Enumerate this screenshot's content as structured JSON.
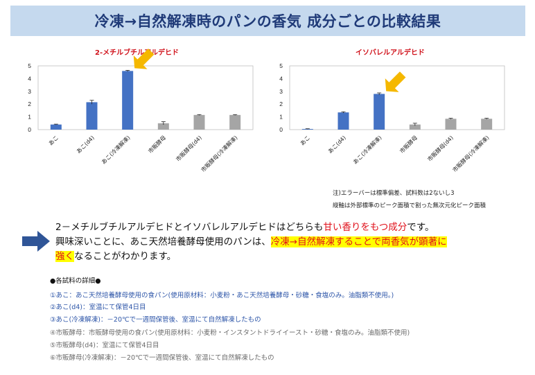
{
  "title": "冷凍→自然解凍時のパンの香気 成分ごとの比較結果",
  "chart_data": [
    {
      "type": "bar",
      "title": "2-メチルブチルアルデヒド",
      "categories": [
        "あこ",
        "あこ(d4)",
        "あこ(冷凍解凍)",
        "市販酵母",
        "市販酵母(d4)",
        "市販酵母(冷凍解凍)"
      ],
      "values": [
        0.4,
        2.15,
        4.6,
        0.5,
        1.15,
        1.15
      ],
      "errors": [
        0.03,
        0.15,
        0.05,
        0.12,
        0.03,
        0.03
      ],
      "colors": [
        "#4472c4",
        "#4472c4",
        "#4472c4",
        "#a5a5a5",
        "#a5a5a5",
        "#a5a5a5"
      ],
      "ylim": [
        0,
        5
      ],
      "yticks": [
        "0",
        "1",
        "2",
        "3",
        "4",
        "5"
      ],
      "highlight_index": 2
    },
    {
      "type": "bar",
      "title": "イソバレルアルデヒド",
      "categories": [
        "あこ",
        "あこ(d4)",
        "あこ(冷凍解凍)",
        "市販酵母",
        "市販酵母(d4)",
        "市販酵母(冷凍解凍)"
      ],
      "values": [
        0.05,
        1.35,
        2.8,
        0.4,
        0.85,
        0.85
      ],
      "errors": [
        0.02,
        0.05,
        0.08,
        0.1,
        0.04,
        0.04
      ],
      "colors": [
        "#4472c4",
        "#4472c4",
        "#4472c4",
        "#a5a5a5",
        "#a5a5a5",
        "#a5a5a5"
      ],
      "ylim": [
        0,
        5
      ],
      "yticks": [
        "0",
        "1",
        "2",
        "3",
        "4",
        "5"
      ],
      "highlight_index": 2
    }
  ],
  "notes": [
    "注)エラーバーは標準偏差、試料数は2ないし3",
    "縦軸は外部標準のピーク面積で割った無次元化ピーク面積"
  ],
  "summary": {
    "line1_a": "2－メチルブチルアルデヒドとイソバレルアルデヒドはどちらも",
    "line1_red": "甘い香りをもつ成分",
    "line1_b": "です。",
    "line2_a": "興味深いことに、あこ天然培養酵母使用のパンは、",
    "line2_hl": "冷凍→自然解凍することで両香気が顕著に",
    "line3_hl": "強く",
    "line3_b": "なることがわかります。"
  },
  "details": {
    "heading": "●各試料の詳細●",
    "items": [
      "①あこ：あこ天然培養酵母使用の食パン(使用原材料：小麦粉・あこ天然培養酵母・砂糖・食塩のみ。油脂類不使用。)",
      "②あこ(d4)：室温にて保管4日目",
      "③あこ(冷凍解凍)：－20℃で一週間保管後、室温にて自然解凍したもの",
      "④市販酵母：市販酵母使用の食パン(使用原材料：小麦粉・インスタントドライイースト・砂糖・食塩のみ。油脂類不使用)",
      "⑤市販酵母(d4)：室温にて保管4日目",
      "⑥市販酵母(冷凍解凍)：－20℃で一週間保管後、室温にて自然解凍したもの"
    ]
  },
  "colors": {
    "accent_blue": "#4472c4",
    "gray_bar": "#a5a5a5",
    "highlight_yellow": "#ffff00",
    "arrow_orange": "#f5b800",
    "title_bg": "#c5d9ee"
  }
}
